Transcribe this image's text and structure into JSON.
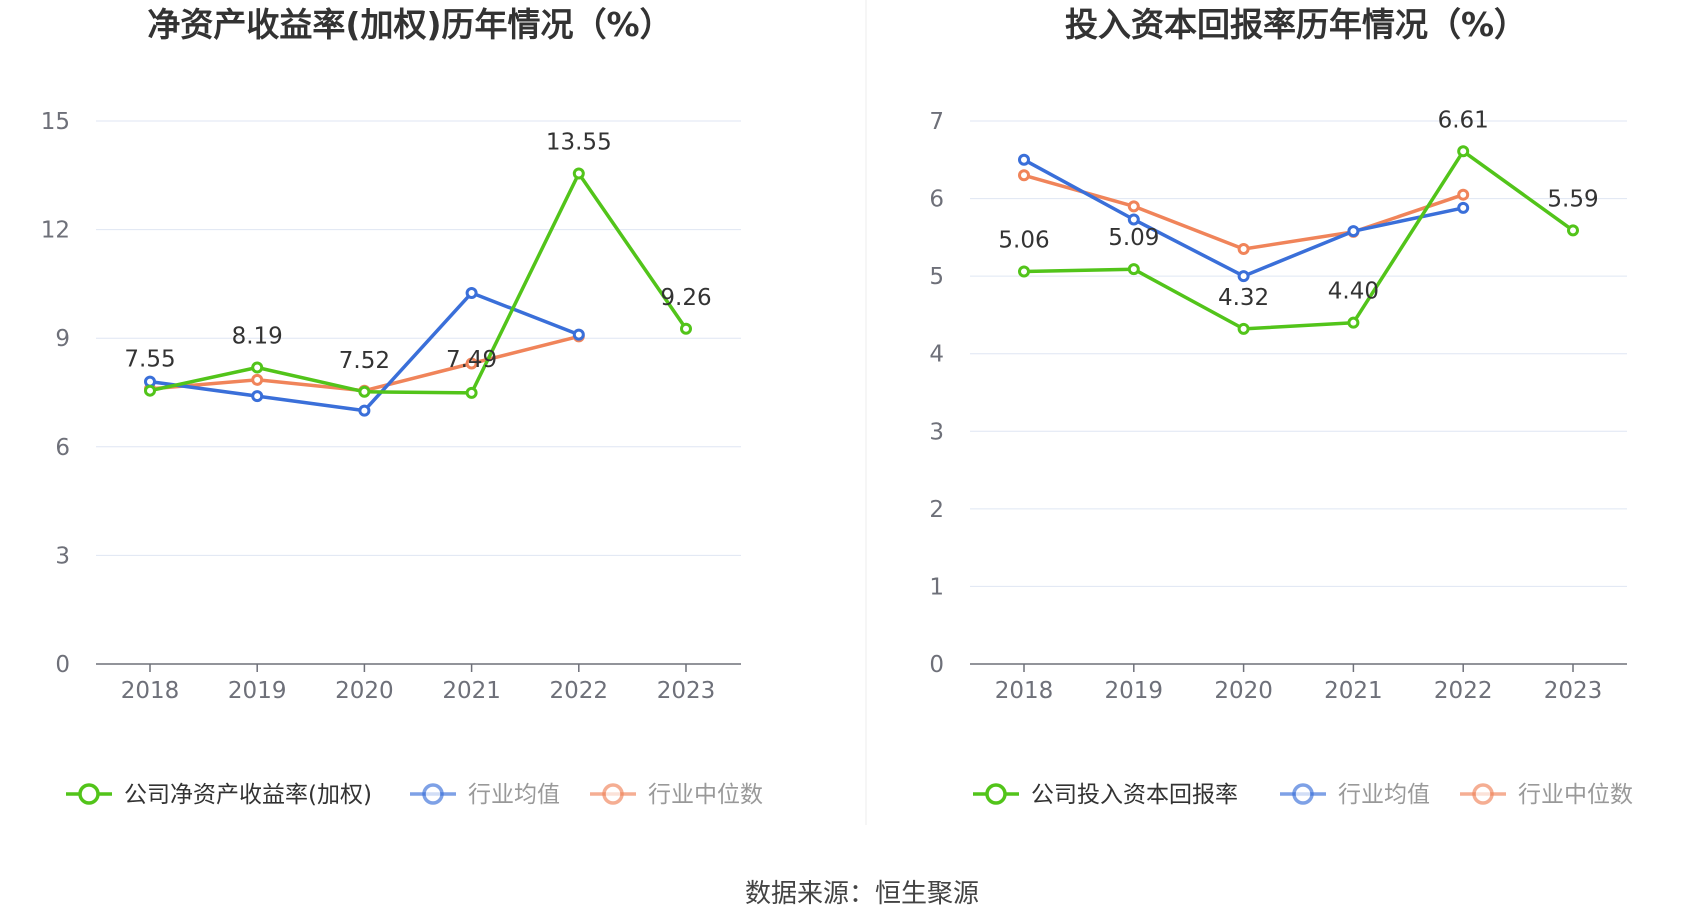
{
  "source_label": "数据来源：恒生聚源",
  "colors": {
    "company": "#52c41a",
    "avg": "#3a6fd9",
    "median": "#f0845a",
    "grid": "#dfe6f3",
    "axis": "#6e7079"
  },
  "chart_data": [
    {
      "type": "line",
      "title": "净资产收益率(加权)历年情况（%）",
      "categories": [
        "2018",
        "2019",
        "2020",
        "2021",
        "2022",
        "2023"
      ],
      "ylim": [
        0,
        15
      ],
      "yticks": [
        "0",
        "3",
        "6",
        "9",
        "12",
        "15"
      ],
      "grid": true,
      "legend_position": "bottom",
      "series": [
        {
          "name": "公司净资产收益率(加权)",
          "color": "#52c41a",
          "values": [
            7.55,
            8.19,
            7.52,
            7.49,
            13.55,
            9.26
          ],
          "labels": [
            "7.55",
            "8.19",
            "7.52",
            "7.49",
            "13.55",
            "9.26"
          ]
        },
        {
          "name": "行业均值",
          "color": "#3a6fd9",
          "values": [
            7.8,
            7.4,
            7.0,
            10.25,
            9.1,
            null
          ]
        },
        {
          "name": "行业中位数",
          "color": "#f0845a",
          "values": [
            7.6,
            7.85,
            7.55,
            8.3,
            9.05,
            null
          ]
        }
      ]
    },
    {
      "type": "line",
      "title": "投入资本回报率历年情况（%）",
      "categories": [
        "2018",
        "2019",
        "2020",
        "2021",
        "2022",
        "2023"
      ],
      "ylim": [
        0,
        7
      ],
      "yticks": [
        "0",
        "1",
        "2",
        "3",
        "4",
        "5",
        "6",
        "7"
      ],
      "grid": true,
      "legend_position": "bottom",
      "series": [
        {
          "name": "公司投入资本回报率",
          "color": "#52c41a",
          "values": [
            5.06,
            5.09,
            4.32,
            4.4,
            6.61,
            5.59
          ],
          "labels": [
            "5.06",
            "5.09",
            "4.32",
            "4.40",
            "6.61",
            "5.59"
          ]
        },
        {
          "name": "行业均值",
          "color": "#3a6fd9",
          "values": [
            6.5,
            5.73,
            5.0,
            5.58,
            5.88,
            null
          ]
        },
        {
          "name": "行业中位数",
          "color": "#f0845a",
          "values": [
            6.3,
            5.9,
            5.35,
            5.57,
            6.05,
            null
          ]
        }
      ]
    }
  ]
}
